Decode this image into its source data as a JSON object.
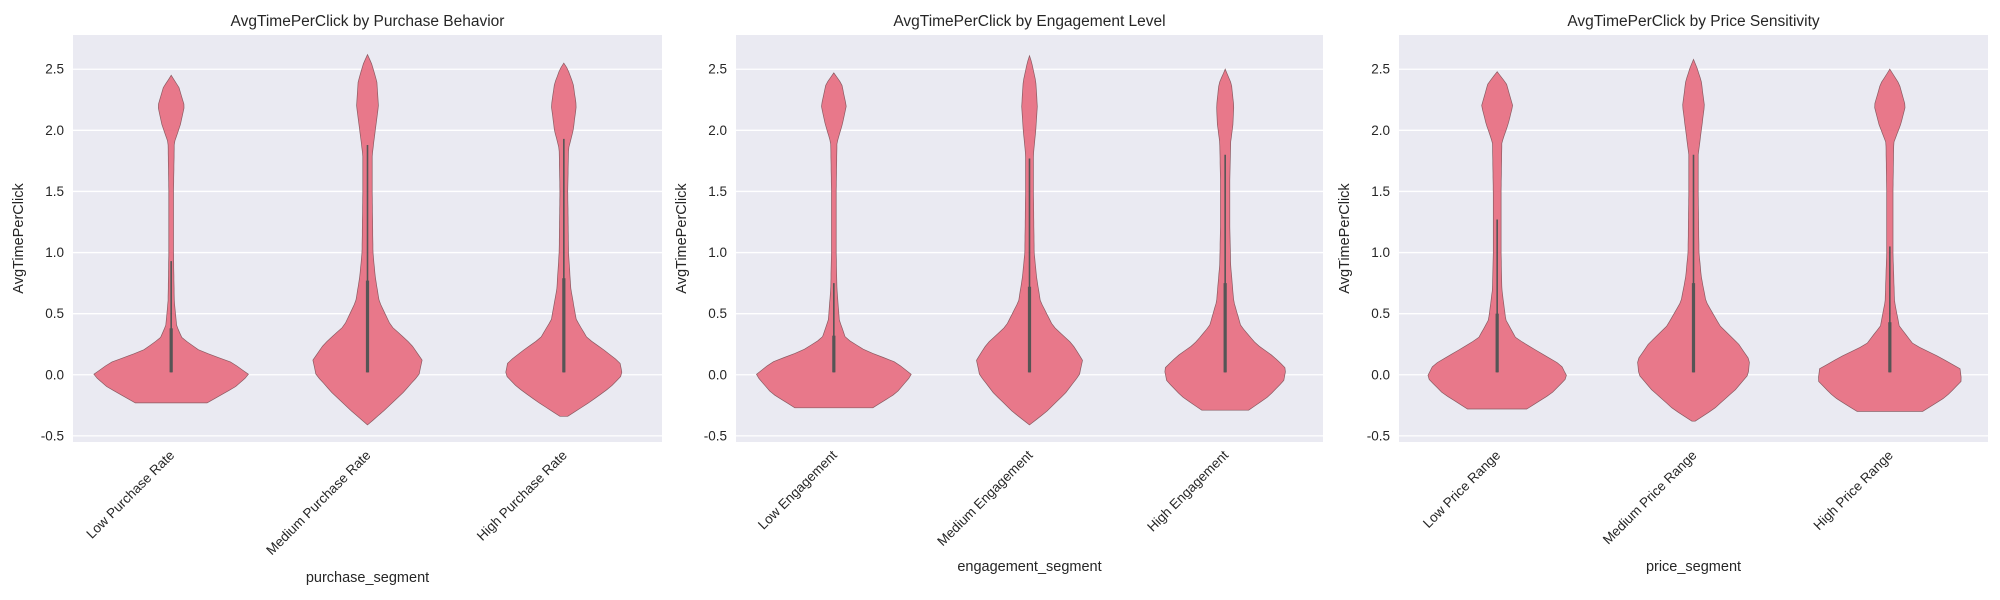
{
  "chart_data": [
    {
      "type": "violin",
      "title": "AvgTimePerClick by Purchase Behavior",
      "xlabel": "purchase_segment",
      "ylabel": "AvgTimePerClick",
      "ylim": [
        -0.55,
        2.78
      ],
      "yticks": [
        "-0.5",
        "0.0",
        "0.5",
        "1.0",
        "1.5",
        "2.0",
        "2.5"
      ],
      "grid": true,
      "color": "#e8788a",
      "categories": [
        "Low Purchase Rate",
        "Medium Purchase Rate",
        "High Purchase Rate"
      ],
      "violins": [
        {
          "min": -0.23,
          "max": 2.45,
          "q1": 0.02,
          "median": 0.1,
          "q3": 0.38,
          "whisker_high": 0.93,
          "profile": [
            [
              -0.23,
              0.46
            ],
            [
              -0.1,
              0.82
            ],
            [
              0.0,
              1.0
            ],
            [
              0.1,
              0.78
            ],
            [
              0.2,
              0.36
            ],
            [
              0.3,
              0.14
            ],
            [
              0.4,
              0.07
            ],
            [
              0.6,
              0.04
            ],
            [
              1.0,
              0.03
            ],
            [
              1.5,
              0.03
            ],
            [
              1.9,
              0.04
            ],
            [
              2.05,
              0.12
            ],
            [
              2.2,
              0.17
            ],
            [
              2.35,
              0.1
            ],
            [
              2.45,
              0.0
            ]
          ]
        },
        {
          "min": -0.41,
          "max": 2.62,
          "q1": 0.02,
          "median": 0.3,
          "q3": 0.77,
          "whisker_high": 1.88,
          "profile": [
            [
              -0.41,
              0.0
            ],
            [
              -0.3,
              0.2
            ],
            [
              -0.15,
              0.45
            ],
            [
              0.0,
              0.66
            ],
            [
              0.12,
              0.7
            ],
            [
              0.25,
              0.56
            ],
            [
              0.4,
              0.3
            ],
            [
              0.6,
              0.15
            ],
            [
              0.8,
              0.1
            ],
            [
              1.0,
              0.07
            ],
            [
              1.5,
              0.06
            ],
            [
              1.8,
              0.06
            ],
            [
              2.0,
              0.1
            ],
            [
              2.2,
              0.14
            ],
            [
              2.4,
              0.12
            ],
            [
              2.55,
              0.05
            ],
            [
              2.62,
              0.0
            ]
          ]
        },
        {
          "min": -0.34,
          "max": 2.55,
          "q1": 0.02,
          "median": 0.25,
          "q3": 0.79,
          "whisker_high": 1.93,
          "profile": [
            [
              -0.34,
              0.05
            ],
            [
              -0.22,
              0.34
            ],
            [
              -0.1,
              0.6
            ],
            [
              0.0,
              0.75
            ],
            [
              0.1,
              0.72
            ],
            [
              0.2,
              0.52
            ],
            [
              0.3,
              0.3
            ],
            [
              0.45,
              0.16
            ],
            [
              0.7,
              0.09
            ],
            [
              1.0,
              0.06
            ],
            [
              1.5,
              0.05
            ],
            [
              1.85,
              0.06
            ],
            [
              2.0,
              0.12
            ],
            [
              2.2,
              0.16
            ],
            [
              2.38,
              0.12
            ],
            [
              2.5,
              0.05
            ],
            [
              2.55,
              0.0
            ]
          ]
        }
      ]
    },
    {
      "type": "violin",
      "title": "AvgTimePerClick by Engagement Level",
      "xlabel": "engagement_segment",
      "ylabel": "AvgTimePerClick",
      "ylim": [
        -0.55,
        2.78
      ],
      "yticks": [
        "-0.5",
        "0.0",
        "0.5",
        "1.0",
        "1.5",
        "2.0",
        "2.5"
      ],
      "grid": true,
      "color": "#e8788a",
      "categories": [
        "Low Engagement",
        "Medium Engagement",
        "High Engagement"
      ],
      "violins": [
        {
          "min": -0.27,
          "max": 2.47,
          "q1": 0.02,
          "median": 0.1,
          "q3": 0.32,
          "whisker_high": 0.75,
          "profile": [
            [
              -0.27,
              0.5
            ],
            [
              -0.15,
              0.8
            ],
            [
              0.0,
              1.0
            ],
            [
              0.1,
              0.8
            ],
            [
              0.2,
              0.4
            ],
            [
              0.3,
              0.15
            ],
            [
              0.45,
              0.07
            ],
            [
              0.7,
              0.04
            ],
            [
              1.0,
              0.03
            ],
            [
              1.5,
              0.03
            ],
            [
              1.9,
              0.04
            ],
            [
              2.05,
              0.11
            ],
            [
              2.2,
              0.16
            ],
            [
              2.38,
              0.1
            ],
            [
              2.47,
              0.0
            ]
          ]
        },
        {
          "min": -0.41,
          "max": 2.61,
          "q1": 0.02,
          "median": 0.3,
          "q3": 0.72,
          "whisker_high": 1.77,
          "profile": [
            [
              -0.41,
              0.0
            ],
            [
              -0.3,
              0.22
            ],
            [
              -0.15,
              0.46
            ],
            [
              0.0,
              0.64
            ],
            [
              0.12,
              0.68
            ],
            [
              0.25,
              0.55
            ],
            [
              0.4,
              0.3
            ],
            [
              0.6,
              0.14
            ],
            [
              0.8,
              0.09
            ],
            [
              1.0,
              0.06
            ],
            [
              1.5,
              0.05
            ],
            [
              1.8,
              0.05
            ],
            [
              2.0,
              0.08
            ],
            [
              2.2,
              0.1
            ],
            [
              2.4,
              0.08
            ],
            [
              2.55,
              0.03
            ],
            [
              2.61,
              0.0
            ]
          ]
        },
        {
          "min": -0.29,
          "max": 2.5,
          "q1": 0.02,
          "median": 0.22,
          "q3": 0.75,
          "whisker_high": 1.8,
          "profile": [
            [
              -0.29,
              0.3
            ],
            [
              -0.18,
              0.55
            ],
            [
              -0.05,
              0.75
            ],
            [
              0.05,
              0.78
            ],
            [
              0.15,
              0.62
            ],
            [
              0.25,
              0.4
            ],
            [
              0.4,
              0.2
            ],
            [
              0.6,
              0.11
            ],
            [
              0.9,
              0.07
            ],
            [
              1.2,
              0.06
            ],
            [
              1.6,
              0.06
            ],
            [
              1.9,
              0.07
            ],
            [
              2.05,
              0.1
            ],
            [
              2.2,
              0.11
            ],
            [
              2.38,
              0.08
            ],
            [
              2.5,
              0.0
            ]
          ]
        }
      ]
    },
    {
      "type": "violin",
      "title": "AvgTimePerClick by Price Sensitivity",
      "xlabel": "price_segment",
      "ylabel": "AvgTimePerClick",
      "ylim": [
        -0.55,
        2.78
      ],
      "yticks": [
        "-0.5",
        "0.0",
        "0.5",
        "1.0",
        "1.5",
        "2.0",
        "2.5"
      ],
      "grid": true,
      "color": "#e8788a",
      "categories": [
        "Low Price Range",
        "Medium Price Range",
        "High Price Range"
      ],
      "violins": [
        {
          "min": -0.28,
          "max": 2.48,
          "q1": 0.02,
          "median": 0.15,
          "q3": 0.5,
          "whisker_high": 1.27,
          "profile": [
            [
              -0.28,
              0.38
            ],
            [
              -0.15,
              0.7
            ],
            [
              -0.02,
              0.9
            ],
            [
              0.08,
              0.82
            ],
            [
              0.2,
              0.5
            ],
            [
              0.3,
              0.24
            ],
            [
              0.45,
              0.11
            ],
            [
              0.7,
              0.06
            ],
            [
              1.0,
              0.05
            ],
            [
              1.5,
              0.05
            ],
            [
              1.9,
              0.06
            ],
            [
              2.05,
              0.14
            ],
            [
              2.2,
              0.2
            ],
            [
              2.38,
              0.12
            ],
            [
              2.48,
              0.0
            ]
          ]
        },
        {
          "min": -0.38,
          "max": 2.58,
          "q1": 0.02,
          "median": 0.3,
          "q3": 0.75,
          "whisker_high": 1.8,
          "profile": [
            [
              -0.38,
              0.02
            ],
            [
              -0.28,
              0.26
            ],
            [
              -0.12,
              0.54
            ],
            [
              0.0,
              0.7
            ],
            [
              0.12,
              0.72
            ],
            [
              0.25,
              0.58
            ],
            [
              0.4,
              0.34
            ],
            [
              0.6,
              0.16
            ],
            [
              0.8,
              0.1
            ],
            [
              1.0,
              0.07
            ],
            [
              1.5,
              0.06
            ],
            [
              1.8,
              0.06
            ],
            [
              2.0,
              0.1
            ],
            [
              2.2,
              0.14
            ],
            [
              2.4,
              0.1
            ],
            [
              2.52,
              0.04
            ],
            [
              2.58,
              0.0
            ]
          ]
        },
        {
          "min": -0.3,
          "max": 2.5,
          "q1": 0.02,
          "median": 0.12,
          "q3": 0.43,
          "whisker_high": 1.05,
          "profile": [
            [
              -0.3,
              0.42
            ],
            [
              -0.18,
              0.72
            ],
            [
              -0.05,
              0.92
            ],
            [
              0.05,
              0.9
            ],
            [
              0.15,
              0.62
            ],
            [
              0.25,
              0.3
            ],
            [
              0.4,
              0.12
            ],
            [
              0.6,
              0.06
            ],
            [
              1.0,
              0.04
            ],
            [
              1.5,
              0.04
            ],
            [
              1.9,
              0.05
            ],
            [
              2.05,
              0.14
            ],
            [
              2.2,
              0.2
            ],
            [
              2.38,
              0.12
            ],
            [
              2.5,
              0.0
            ]
          ]
        }
      ]
    }
  ]
}
